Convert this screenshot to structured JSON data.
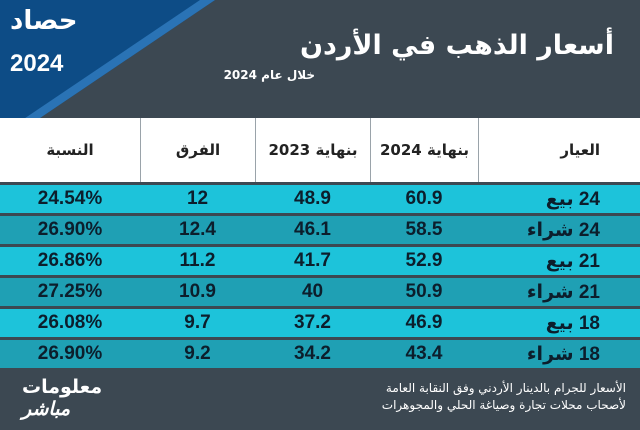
{
  "badge": {
    "word": "حصاد",
    "year": "2024"
  },
  "header": {
    "title": "أسعار الذهب في الأردن",
    "subtitle": "خلال عام 2024"
  },
  "table": {
    "columns": [
      "العيار",
      "بنهاية 2024",
      "بنهاية 2023",
      "الفرق",
      "النسبة"
    ],
    "rows": [
      [
        "24 بيع",
        "60.9",
        "48.9",
        "12",
        "24.54%"
      ],
      [
        "24 شراء",
        "58.5",
        "46.1",
        "12.4",
        "26.90%"
      ],
      [
        "21 بيع",
        "52.9",
        "41.7",
        "11.2",
        "26.86%"
      ],
      [
        "21 شراء",
        "50.9",
        "40",
        "10.9",
        "27.25%"
      ],
      [
        "18 بيع",
        "46.9",
        "37.2",
        "9.7",
        "26.08%"
      ],
      [
        "18 شراء",
        "43.4",
        "34.2",
        "9.2",
        "26.90%"
      ]
    ]
  },
  "footer": {
    "note": [
      "الأسعار للجرام بالدينار الأردني وفق النقابة العامة",
      "لأصحاب محلات تجارة وصياغة الحلي والمجوهرات"
    ],
    "logo": [
      "معلومات",
      "مباشر"
    ]
  }
}
